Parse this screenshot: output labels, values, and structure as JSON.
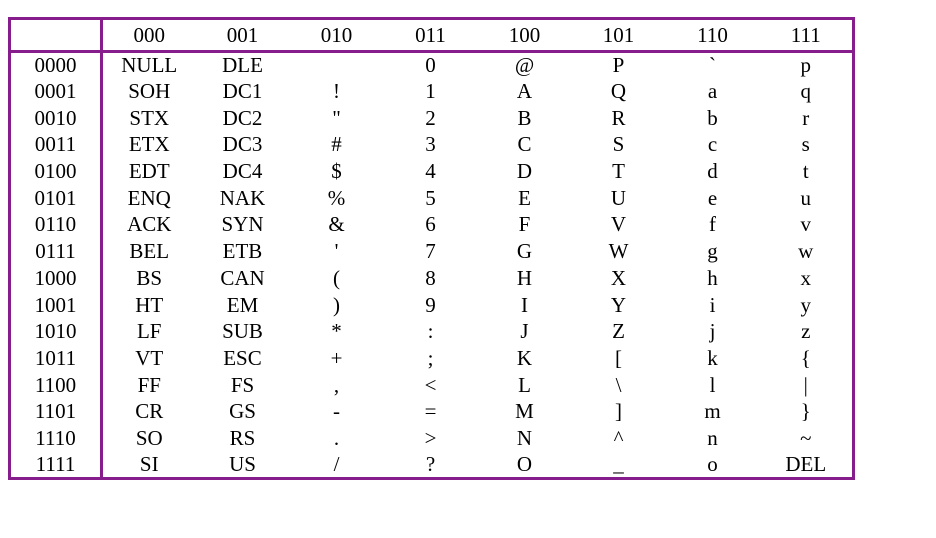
{
  "table": {
    "corner": "",
    "col_headers": [
      "000",
      "001",
      "010",
      "011",
      "100",
      "101",
      "110",
      "111"
    ],
    "rows": [
      {
        "label": "0000",
        "cells": [
          "NULL",
          "DLE",
          "",
          "0",
          "@",
          "P",
          "`",
          "p"
        ]
      },
      {
        "label": "0001",
        "cells": [
          "SOH",
          "DC1",
          "!",
          "1",
          "A",
          "Q",
          "a",
          "q"
        ]
      },
      {
        "label": "0010",
        "cells": [
          "STX",
          "DC2",
          "\"",
          "2",
          "B",
          "R",
          "b",
          "r"
        ]
      },
      {
        "label": "0011",
        "cells": [
          "ETX",
          "DC3",
          "#",
          "3",
          "C",
          "S",
          "c",
          "s"
        ]
      },
      {
        "label": "0100",
        "cells": [
          "EDT",
          "DC4",
          "$",
          "4",
          "D",
          "T",
          "d",
          "t"
        ]
      },
      {
        "label": "0101",
        "cells": [
          "ENQ",
          "NAK",
          "%",
          "5",
          "E",
          "U",
          "e",
          "u"
        ]
      },
      {
        "label": "0110",
        "cells": [
          "ACK",
          "SYN",
          "&",
          "6",
          "F",
          "V",
          "f",
          "v"
        ]
      },
      {
        "label": "0111",
        "cells": [
          "BEL",
          "ETB",
          "'",
          "7",
          "G",
          "W",
          "g",
          "w"
        ]
      },
      {
        "label": "1000",
        "cells": [
          "BS",
          "CAN",
          "(",
          "8",
          "H",
          "X",
          "h",
          "x"
        ]
      },
      {
        "label": "1001",
        "cells": [
          "HT",
          "EM",
          ")",
          "9",
          "I",
          "Y",
          "i",
          "y"
        ]
      },
      {
        "label": "1010",
        "cells": [
          "LF",
          "SUB",
          "*",
          ":",
          "J",
          "Z",
          "j",
          "z"
        ]
      },
      {
        "label": "1011",
        "cells": [
          "VT",
          "ESC",
          "+",
          ";",
          "K",
          "[",
          "k",
          "{"
        ]
      },
      {
        "label": "1100",
        "cells": [
          "FF",
          "FS",
          ",",
          "<",
          "L",
          "\\",
          "l",
          "|"
        ]
      },
      {
        "label": "1101",
        "cells": [
          "CR",
          "GS",
          "-",
          "=",
          "M",
          "]",
          "m",
          "}"
        ]
      },
      {
        "label": "1110",
        "cells": [
          "SO",
          "RS",
          ".",
          ">",
          "N",
          "^",
          "n",
          "~"
        ]
      },
      {
        "label": "1111",
        "cells": [
          "SI",
          "US",
          "/",
          "?",
          "O",
          "_",
          "o",
          "DEL"
        ]
      }
    ]
  },
  "colors": {
    "border": "#871c8c",
    "text": "#000000",
    "background": "#ffffff"
  }
}
